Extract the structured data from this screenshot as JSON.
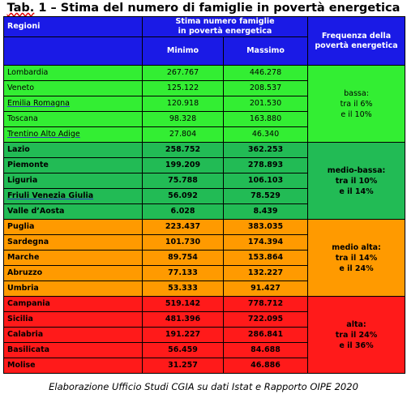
{
  "title": {
    "prefix": "Tab.",
    "rest": " 1 – Stima del numero di famiglie in povertà energetica"
  },
  "header": {
    "regioni": "Regioni",
    "stima_line1": "Stima numero famiglie",
    "stima_line2": "in povertà energetica",
    "minimo": "Minimo",
    "massimo": "Massimo",
    "freq_line1": "Frequenza della",
    "freq_line2": "povertà energetica"
  },
  "groups": [
    {
      "color": "#33ee33",
      "bold": false,
      "freq": [
        "bassa:",
        "tra il 6%",
        "e il 10%"
      ],
      "rows": [
        {
          "region": "Lombardia",
          "min": "267.767",
          "max": "446.278"
        },
        {
          "region": "Veneto",
          "min": "125.122",
          "max": "208.537"
        },
        {
          "region": "Emilia Romagna",
          "min": "120.918",
          "max": "201.530"
        },
        {
          "region": "Toscana",
          "min": "98.328",
          "max": "163.880"
        },
        {
          "region": "Trentino Alto Adige",
          "min": "27.804",
          "max": "46.340"
        }
      ]
    },
    {
      "color": "#22bb55",
      "bold": true,
      "freq": [
        "medio-bassa:",
        "tra il 10%",
        "e il 14%"
      ],
      "rows": [
        {
          "region": "Lazio",
          "min": "258.752",
          "max": "362.253"
        },
        {
          "region": "Piemonte",
          "min": "199.209",
          "max": "278.893"
        },
        {
          "region": "Liguria",
          "min": "75.788",
          "max": "106.103"
        },
        {
          "region": "Friuli Venezia Giulia",
          "min": "56.092",
          "max": "78.529"
        },
        {
          "region": "Valle d’Aosta",
          "min": "6.028",
          "max": "8.439"
        }
      ]
    },
    {
      "color": "#ff9a00",
      "bold": true,
      "freq": [
        "medio alta:",
        "tra il 14%",
        "e il 24%"
      ],
      "rows": [
        {
          "region": "Puglia",
          "min": "223.437",
          "max": "383.035"
        },
        {
          "region": "Sardegna",
          "min": "101.730",
          "max": "174.394"
        },
        {
          "region": "Marche",
          "min": "89.754",
          "max": "153.864"
        },
        {
          "region": "Abruzzo",
          "min": "77.133",
          "max": "132.227"
        },
        {
          "region": "Umbria",
          "min": "53.333",
          "max": "91.427"
        }
      ]
    },
    {
      "color": "#ff1a1a",
      "bold": true,
      "freq": [
        "alta:",
        "tra il 24%",
        "e il 36%"
      ],
      "rows": [
        {
          "region": "Campania",
          "min": "519.142",
          "max": "778.712"
        },
        {
          "region": "Sicilia",
          "min": "481.396",
          "max": "722.095"
        },
        {
          "region": "Calabria",
          "min": "191.227",
          "max": "286.841"
        },
        {
          "region": "Basilicata",
          "min": "56.459",
          "max": "84.688"
        },
        {
          "region": "Molise",
          "min": "31.257",
          "max": "46.886"
        }
      ]
    }
  ],
  "caption": "Elaborazione Ufficio Studi CGIA su dati Istat e Rapporto OIPE 2020"
}
